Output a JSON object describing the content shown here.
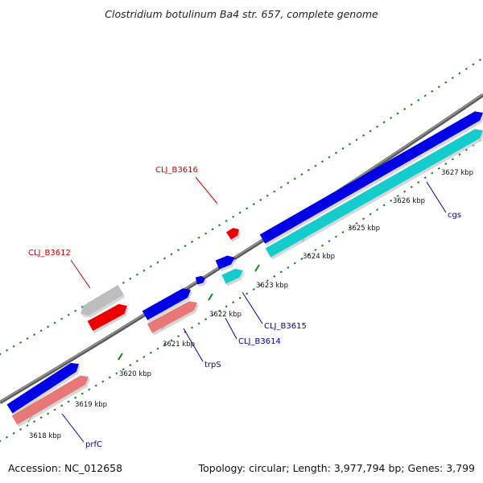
{
  "title": "Clostridium botulinum Ba4 str. 657, complete genome",
  "footer": {
    "accession": "Accession: NC_012658",
    "summary": "Topology: circular; Length: 3,977,794 bp; Genes: 3,799"
  },
  "colors": {
    "backbone": "#808080",
    "blue_gene": "#0000e6",
    "cyan_gene": "#14cccc",
    "pink_gene": "#e87878",
    "red_gene": "#ee0000",
    "gray_gene": "#bdbdbd",
    "tick": "#1a801a",
    "blue_label": "#0000aa",
    "red_label": "#cc0000"
  },
  "ticks": [
    {
      "kbp": 3618,
      "label": "3618 kbp"
    },
    {
      "kbp": 3619,
      "label": "3619 kbp"
    },
    {
      "kbp": 3620,
      "label": "3620 kbp"
    },
    {
      "kbp": 3621,
      "label": "3621 kbp"
    },
    {
      "kbp": 3622,
      "label": "3622 kbp"
    },
    {
      "kbp": 3623,
      "label": "3623 kbp"
    },
    {
      "kbp": 3624,
      "label": "3624 kbp"
    },
    {
      "kbp": 3625,
      "label": "3625 kbp"
    },
    {
      "kbp": 3626,
      "label": "3626 kbp"
    },
    {
      "kbp": 3627,
      "label": "3627 kbp"
    }
  ],
  "genes": [
    {
      "name": "CLJ_B3612",
      "strand": "-",
      "color": "red",
      "label": "CLJ_B3612",
      "label_color": "red"
    },
    {
      "name": "CLJ_B3616",
      "strand": "-",
      "color": "red",
      "label": "CLJ_B3616",
      "label_color": "red"
    },
    {
      "name": "prfC",
      "strand": "+",
      "color": "blue",
      "label": "prfC",
      "label_color": "blue"
    },
    {
      "name": "trpS",
      "strand": "+",
      "color": "blue",
      "label": "trpS",
      "label_color": "blue"
    },
    {
      "name": "CLJ_B3614",
      "strand": "+",
      "color": "blue",
      "label": "CLJ_B3614",
      "label_color": "blue"
    },
    {
      "name": "CLJ_B3615",
      "strand": "+",
      "color": "cyan",
      "label": "CLJ_B3615",
      "label_color": "blue"
    },
    {
      "name": "cgs",
      "strand": "+",
      "color": "cyan",
      "label": "cgs",
      "label_color": "blue"
    }
  ]
}
